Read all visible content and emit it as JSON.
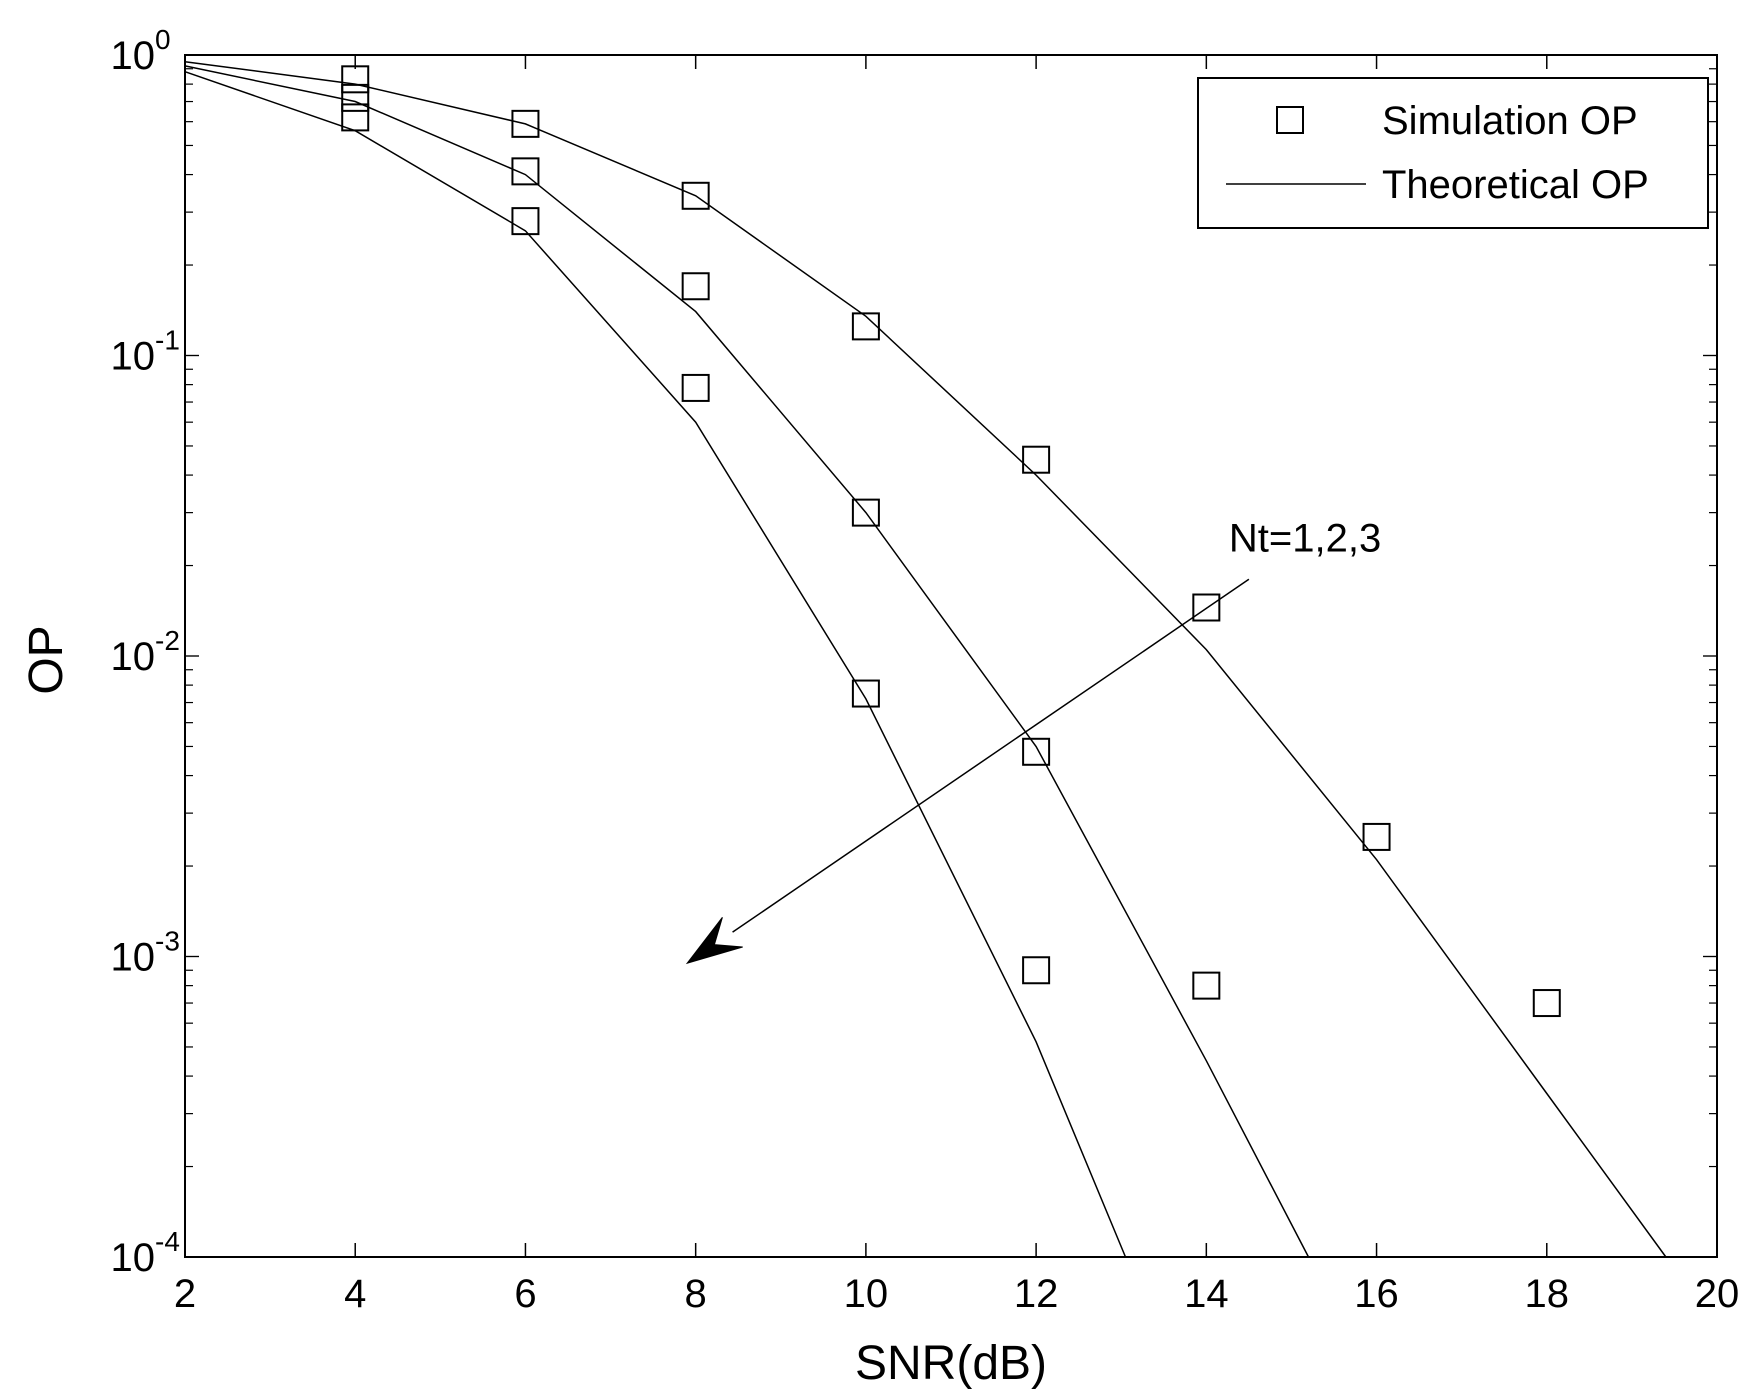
{
  "chart_data": {
    "type": "line",
    "xlabel": "SNR(dB)",
    "ylabel": "OP",
    "x_range": [
      2,
      20
    ],
    "y_range": [
      0.0001,
      1
    ],
    "y_scale": "log",
    "grid": false,
    "legend_position": "top-right",
    "x_ticks": [
      "2",
      "4",
      "6",
      "8",
      "10",
      "12",
      "14",
      "16",
      "18",
      "20"
    ],
    "y_ticks": [
      {
        "value": 1,
        "base": "10",
        "exp": "0"
      },
      {
        "value": 0.1,
        "base": "10",
        "exp": "-1"
      },
      {
        "value": 0.01,
        "base": "10",
        "exp": "-2"
      },
      {
        "value": 0.001,
        "base": "10",
        "exp": "-3"
      },
      {
        "value": 0.0001,
        "base": "10",
        "exp": "-4"
      }
    ],
    "legend": {
      "simulation": "Simulation OP",
      "theoretical": "Theoretical OP"
    },
    "annotation": {
      "text": "Nt=1,2,3",
      "arrow_from": [
        14.5,
        0.018
      ],
      "arrow_to": [
        7.9,
        0.00095
      ]
    },
    "theoretical_series": [
      {
        "x": [
          2,
          4,
          6,
          8,
          10,
          12,
          14,
          16,
          18,
          19.4
        ],
        "y": [
          0.95,
          0.8,
          0.59,
          0.34,
          0.135,
          0.04,
          0.0105,
          0.0021,
          0.00035,
          0.0001
        ]
      },
      {
        "x": [
          2,
          4,
          6,
          8,
          10,
          12,
          14,
          15.2
        ],
        "y": [
          0.92,
          0.7,
          0.4,
          0.14,
          0.03,
          0.005,
          0.00045,
          0.0001
        ]
      },
      {
        "x": [
          2,
          4,
          6,
          8,
          10,
          12,
          13.05
        ],
        "y": [
          0.88,
          0.56,
          0.26,
          0.06,
          0.0072,
          0.00052,
          0.0001
        ]
      }
    ],
    "simulation_series": [
      {
        "x": [
          4,
          6,
          8,
          10,
          12,
          14,
          16,
          18
        ],
        "y": [
          0.83,
          0.59,
          0.34,
          0.125,
          0.045,
          0.0145,
          0.0025,
          0.0007
        ]
      },
      {
        "x": [
          4,
          6,
          8,
          10,
          12,
          14
        ],
        "y": [
          0.72,
          0.41,
          0.17,
          0.03,
          0.0048,
          0.0008
        ]
      },
      {
        "x": [
          4,
          6,
          8,
          10,
          12
        ],
        "y": [
          0.62,
          0.28,
          0.078,
          0.0075,
          0.0009
        ]
      }
    ]
  }
}
